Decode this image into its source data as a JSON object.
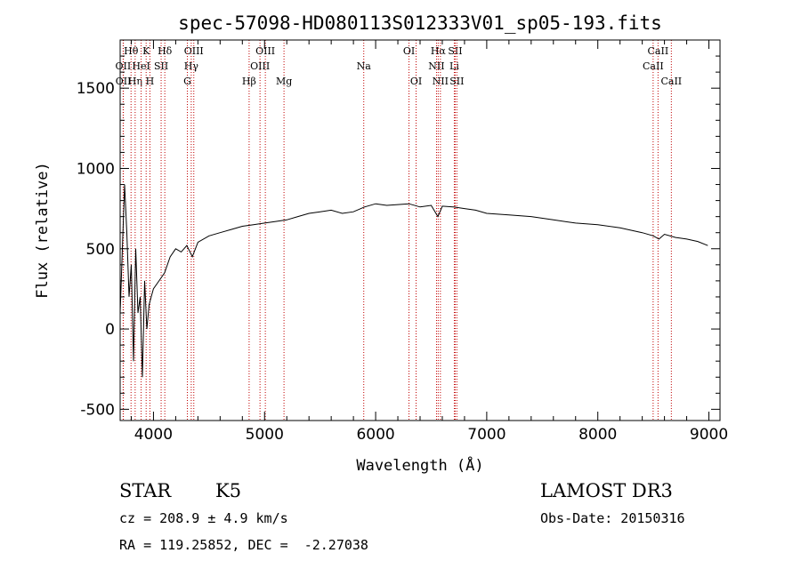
{
  "chart_data": {
    "type": "line",
    "title": "spec-57098-HD080113S012333V01_sp05-193.fits",
    "xlabel": "Wavelength (Å)",
    "ylabel": "Flux (relative)",
    "xlim": [
      3700,
      9100
    ],
    "ylim": [
      -570,
      1800
    ],
    "xticks": [
      4000,
      5000,
      6000,
      7000,
      8000,
      9000
    ],
    "yticks": [
      -500,
      0,
      500,
      1000,
      1500
    ],
    "series": [
      {
        "name": "spectrum",
        "x": [
          3700,
          3720,
          3740,
          3760,
          3780,
          3800,
          3820,
          3840,
          3860,
          3880,
          3900,
          3920,
          3940,
          3960,
          3980,
          4000,
          4050,
          4100,
          4150,
          4200,
          4250,
          4300,
          4350,
          4400,
          4500,
          4600,
          4700,
          4800,
          4900,
          5000,
          5100,
          5200,
          5300,
          5400,
          5500,
          5600,
          5700,
          5800,
          5900,
          6000,
          6100,
          6200,
          6300,
          6400,
          6500,
          6560,
          6600,
          6700,
          6800,
          6900,
          7000,
          7200,
          7400,
          7600,
          7800,
          8000,
          8200,
          8400,
          8500,
          8550,
          8600,
          8700,
          8800,
          8900,
          8990
        ],
        "y": [
          100,
          500,
          900,
          600,
          200,
          400,
          -200,
          500,
          100,
          200,
          -300,
          300,
          0,
          150,
          200,
          250,
          300,
          350,
          450,
          500,
          480,
          520,
          450,
          540,
          580,
          600,
          620,
          640,
          650,
          660,
          670,
          680,
          700,
          720,
          730,
          740,
          720,
          730,
          760,
          780,
          770,
          775,
          780,
          760,
          770,
          700,
          765,
          760,
          750,
          740,
          720,
          710,
          700,
          680,
          660,
          650,
          630,
          600,
          580,
          560,
          590,
          570,
          560,
          545,
          520
        ]
      }
    ],
    "spectral_lines": [
      {
        "name": "Hθ",
        "wavelength": 3798,
        "row": 1
      },
      {
        "name": "OII",
        "wavelength": 3727,
        "row": 2
      },
      {
        "name": "OII",
        "wavelength": 3729,
        "row": 3
      },
      {
        "name": "Hη",
        "wavelength": 3835,
        "row": 3
      },
      {
        "name": "HeI",
        "wavelength": 3889,
        "row": 2
      },
      {
        "name": "K",
        "wavelength": 3934,
        "row": 1
      },
      {
        "name": "SII",
        "wavelength": 4069,
        "row": 2
      },
      {
        "name": "H",
        "wavelength": 3968,
        "row": 3
      },
      {
        "name": "Hδ",
        "wavelength": 4102,
        "row": 1
      },
      {
        "name": "OIII",
        "wavelength": 4363,
        "row": 1
      },
      {
        "name": "Hγ",
        "wavelength": 4340,
        "row": 2
      },
      {
        "name": "G",
        "wavelength": 4305,
        "row": 3
      },
      {
        "name": "Hβ",
        "wavelength": 4861,
        "row": 3
      },
      {
        "name": "OIII",
        "wavelength": 4959,
        "row": 2
      },
      {
        "name": "OIII",
        "wavelength": 5007,
        "row": 1
      },
      {
        "name": "Mg",
        "wavelength": 5175,
        "row": 3
      },
      {
        "name": "Na",
        "wavelength": 5893,
        "row": 2
      },
      {
        "name": "OI",
        "wavelength": 6300,
        "row": 1
      },
      {
        "name": "OI",
        "wavelength": 6364,
        "row": 3
      },
      {
        "name": "Hα",
        "wavelength": 6563,
        "row": 1
      },
      {
        "name": "NII",
        "wavelength": 6548,
        "row": 2
      },
      {
        "name": "NII",
        "wavelength": 6583,
        "row": 3
      },
      {
        "name": "SII",
        "wavelength": 6716,
        "row": 1
      },
      {
        "name": "Li",
        "wavelength": 6708,
        "row": 2
      },
      {
        "name": "SII",
        "wavelength": 6731,
        "row": 3
      },
      {
        "name": "CaII",
        "wavelength": 8542,
        "row": 1
      },
      {
        "name": "CaII",
        "wavelength": 8498,
        "row": 2
      },
      {
        "name": "CaII",
        "wavelength": 8662,
        "row": 3
      }
    ],
    "line_color": "#c00000"
  },
  "info": {
    "object_class": "STAR",
    "subclass": "K5",
    "survey": "LAMOST DR3",
    "cz": "cz = 208.9 ± 4.9 km/s",
    "obs_date": "Obs-Date: 20150316",
    "coords": "RA = 119.25852, DEC =  -2.27038"
  }
}
